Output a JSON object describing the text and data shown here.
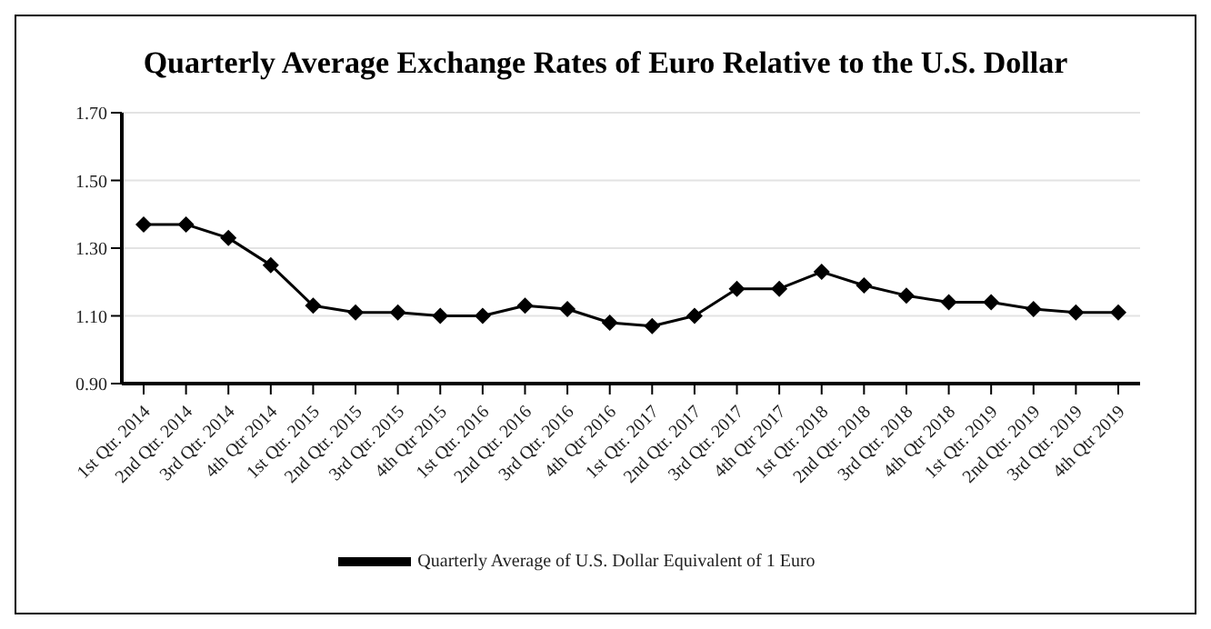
{
  "chart_data": {
    "type": "line",
    "title": "Quarterly Average Exchange Rates of Euro Relative to the U.S. Dollar",
    "categories": [
      "1st Qtr. 2014",
      "2nd Qtr. 2014",
      "3rd Qtr. 2014",
      "4th Qtr 2014",
      "1st Qtr. 2015",
      "2nd Qtr. 2015",
      "3rd Qtr. 2015",
      "4th Qtr 2015",
      "1st Qtr. 2016",
      "2nd Qtr. 2016",
      "3rd Qtr. 2016",
      "4th Qtr 2016",
      "1st Qtr. 2017",
      "2nd Qtr. 2017",
      "3rd Qtr. 2017",
      "4th Qtr 2017",
      "1st Qtr. 2018",
      "2nd Qtr. 2018",
      "3rd Qtr. 2018",
      "4th Qtr 2018",
      "1st Qtr. 2019",
      "2nd Qtr. 2019",
      "3rd Qtr. 2019",
      "4th Qtr 2019"
    ],
    "series": [
      {
        "name": "Quarterly Average of U.S. Dollar Equivalent of 1 Euro",
        "color": "#000000",
        "values": [
          1.37,
          1.37,
          1.33,
          1.25,
          1.13,
          1.11,
          1.11,
          1.1,
          1.1,
          1.13,
          1.12,
          1.08,
          1.07,
          1.1,
          1.18,
          1.18,
          1.23,
          1.19,
          1.16,
          1.14,
          1.14,
          1.12,
          1.11,
          1.11
        ]
      }
    ],
    "ylim": [
      0.9,
      1.7
    ],
    "yticks": [
      {
        "value": 0.9,
        "label": "0.90"
      },
      {
        "value": 1.1,
        "label": "1.10"
      },
      {
        "value": 1.3,
        "label": "1.30"
      },
      {
        "value": 1.5,
        "label": "1.50"
      },
      {
        "value": 1.7,
        "label": "1.70"
      }
    ],
    "grid": "y",
    "legend": "bottom",
    "marker": "diamond",
    "line_style": "solid"
  }
}
